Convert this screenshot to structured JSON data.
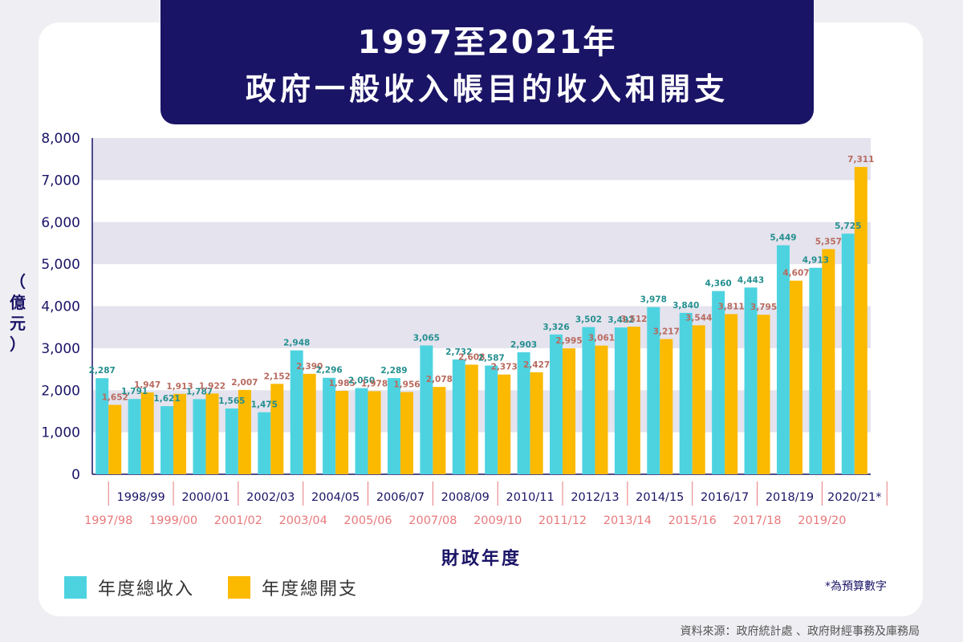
{
  "title": {
    "line1": "1997至2021年",
    "line2": "政府一般收入帳目的收入和開支"
  },
  "colors": {
    "revenue": "#4dd3e0",
    "expenditure": "#fbb900",
    "revenue_label": "#248f8f",
    "expenditure_label": "#b86a5e",
    "navy": "#1a1466",
    "lower_year_label": "#e8797b"
  },
  "legend": {
    "revenue": "年度總收入",
    "expenditure": "年度總開支"
  },
  "note": "*為預算數字",
  "source": "資料來源：政府統計處 、政府財經事務及庫務局",
  "chart_data": {
    "type": "bar",
    "title": "1997至2021年 政府一般收入帳目的收入和開支",
    "ylabel_chars": [
      "（",
      "億",
      "元",
      "）"
    ],
    "xlabel": "財政年度",
    "ylim": [
      0,
      8000
    ],
    "yticks": [
      "0",
      "1,000",
      "2,000",
      "3,000",
      "4,000",
      "5,000",
      "6,000",
      "7,000",
      "8,000"
    ],
    "categories": [
      "1997/98",
      "1998/99",
      "1999/00",
      "2000/01",
      "2001/02",
      "2002/03",
      "2003/04",
      "2004/05",
      "2005/06",
      "2006/07",
      "2007/08",
      "2008/09",
      "2009/10",
      "2010/11",
      "2011/12",
      "2012/13",
      "2013/14",
      "2014/15",
      "2015/16",
      "2016/17",
      "2017/18",
      "2018/19",
      "2019/20",
      "2020/21*"
    ],
    "series": [
      {
        "name": "年度總收入",
        "values": [
          2287,
          1791,
          1621,
          1787,
          1565,
          1475,
          2948,
          2296,
          2050,
          2289,
          3065,
          2732,
          2587,
          2903,
          3326,
          3502,
          3492,
          3978,
          3840,
          4360,
          4443,
          5449,
          4913,
          5725
        ],
        "labels": [
          "2,287",
          "1,791",
          "1,621",
          "1,787",
          "1,565",
          "1,475",
          "2,948",
          "2,296",
          "2,050",
          "2,289",
          "3,065",
          "2,732",
          "2,587",
          "2,903",
          "3,326",
          "3,502",
          "3,492",
          "3,978",
          "3,840",
          "4,360",
          "4,443",
          "5,449",
          "4,913",
          "5,725"
        ]
      },
      {
        "name": "年度總開支",
        "values": [
          1652,
          1947,
          1913,
          1922,
          2007,
          2152,
          2390,
          1985,
          1978,
          1956,
          2078,
          2608,
          2373,
          2427,
          2995,
          3061,
          3512,
          3217,
          3544,
          3811,
          3795,
          4607,
          5357,
          7311
        ],
        "labels": [
          "1,652",
          "1,947",
          "1,913",
          "1,922",
          "2,007",
          "2,152",
          "2,390",
          "1,985",
          "1,978",
          "1,956",
          "2,078",
          "2,608",
          "2,373",
          "2,427",
          "2,995",
          "3,061",
          "3,512",
          "3,217",
          "3,544",
          "3,811",
          "3,795",
          "4,607",
          "5,357",
          "7,311"
        ]
      }
    ],
    "grid": "alternating horizontal bands",
    "legend_position": "bottom-left"
  }
}
